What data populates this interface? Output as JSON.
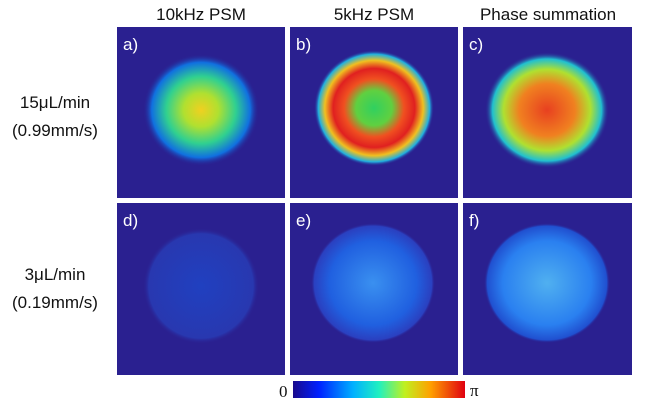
{
  "columns": [
    "10kHz PSM",
    "5kHz PSM",
    "Phase summation"
  ],
  "rows": [
    [
      "15μL/min",
      "(0.99mm/s)"
    ],
    [
      "3μL/min",
      "(0.19mm/s)"
    ]
  ],
  "panels": [
    "a)",
    "b)",
    "c)",
    "d)",
    "e)",
    "f)"
  ],
  "colorbar": {
    "min_label": "0",
    "max_label": "π"
  }
}
